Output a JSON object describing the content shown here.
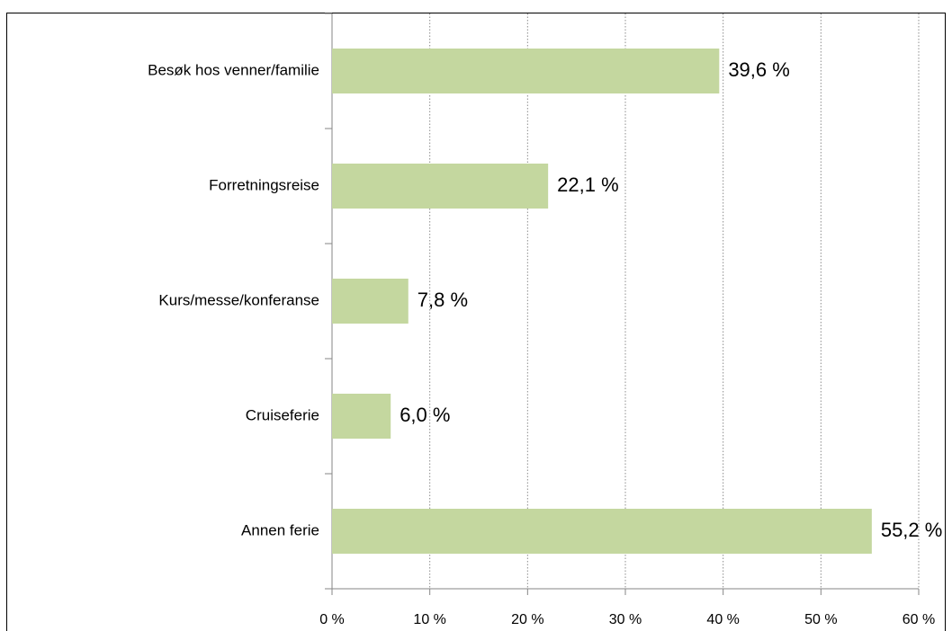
{
  "chart_data": {
    "type": "barh",
    "categories": [
      "Besøk hos venner/familie",
      "Forretningsreise",
      "Kurs/messe/konferanse",
      "Cruiseferie",
      "Annen ferie"
    ],
    "values": [
      39.6,
      22.1,
      7.8,
      6.0,
      55.2
    ],
    "value_labels": [
      "39,6 %",
      "22,1 %",
      "7,8 %",
      "6,0 %",
      "55,2 %"
    ],
    "color": "#c4d79f",
    "xlim": [
      0,
      60
    ],
    "xticks": [
      {
        "value": 0,
        "label": "0 %"
      },
      {
        "value": 10,
        "label": "10 %"
      },
      {
        "value": 20,
        "label": "20 %"
      },
      {
        "value": 30,
        "label": "30 %"
      },
      {
        "value": 40,
        "label": "40 %"
      },
      {
        "value": 50,
        "label": "50 %"
      },
      {
        "value": 60,
        "label": "60 %"
      }
    ],
    "grid": true
  }
}
